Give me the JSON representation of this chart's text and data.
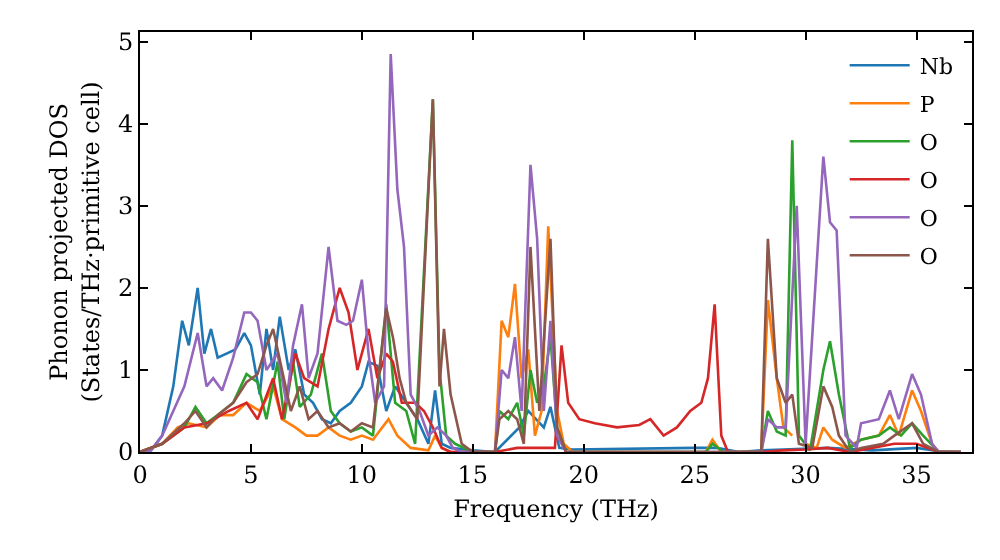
{
  "chart_data": {
    "type": "line",
    "xlabel": "Frequency (THz)",
    "ylabel": "Phonon projected DOS\n(States/THz·primitive cell)",
    "xlim": [
      0,
      37.5
    ],
    "ylim": [
      0,
      5.12
    ],
    "xticks": [
      0,
      5,
      10,
      15,
      20,
      25,
      30,
      35
    ],
    "yticks": [
      0,
      1,
      2,
      3,
      4,
      5
    ],
    "grid": false,
    "legend": "top right",
    "marker": "none",
    "line_style": "solid",
    "series": [
      {
        "name": "Nb",
        "color": "#1f77b4",
        "x": [
          0,
          0.5,
          1,
          1.5,
          1.9,
          2.2,
          2.6,
          2.9,
          3.2,
          3.5,
          3.9,
          4.3,
          4.7,
          5.0,
          5.4,
          5.7,
          6.0,
          6.3,
          6.7,
          7.0,
          7.4,
          7.8,
          8.2,
          8.6,
          9.0,
          9.5,
          10.0,
          10.3,
          10.7,
          11.1,
          11.5,
          12.0,
          12.5,
          13.0,
          13.3,
          13.6,
          14,
          15,
          16,
          17.1,
          17.5,
          18.2,
          18.5,
          18.9,
          19.5,
          25,
          26,
          27,
          28,
          29,
          31,
          33,
          35,
          36,
          37
        ],
        "values": [
          0,
          0.02,
          0.2,
          0.8,
          1.6,
          1.3,
          2.0,
          1.2,
          1.5,
          1.15,
          1.2,
          1.25,
          1.45,
          1.3,
          0.7,
          1.5,
          1.0,
          1.65,
          1.0,
          1.25,
          0.7,
          0.6,
          0.4,
          0.35,
          0.5,
          0.6,
          0.8,
          1.1,
          1.05,
          0.5,
          0.8,
          0.6,
          0.4,
          0.1,
          0.75,
          0.1,
          0.05,
          0.02,
          0,
          0.3,
          0.5,
          0.3,
          0.55,
          0.05,
          0.03,
          0.05,
          0.05,
          0,
          0.02,
          0.03,
          0.05,
          0.02,
          0.05,
          0.01,
          0
        ]
      },
      {
        "name": "P",
        "color": "#ff7f0e",
        "x": [
          0,
          1,
          1.7,
          2.2,
          3,
          3.6,
          4.2,
          4.8,
          5.4,
          6.0,
          6.4,
          7.0,
          7.5,
          8,
          8.5,
          9,
          9.5,
          10,
          10.5,
          11.2,
          11.6,
          12.2,
          13,
          13.3,
          13.6,
          14,
          16,
          16.3,
          16.6,
          16.9,
          17.2,
          17.5,
          17.8,
          18.1,
          18.4,
          18.8,
          19.1,
          19.5,
          25.5,
          25.8,
          26.2,
          28,
          28.3,
          28.7,
          29,
          29.4,
          29.6,
          30,
          30.5,
          30.8,
          31.2,
          31.8,
          32.5,
          33.3,
          33.8,
          34.2,
          34.8,
          35.2,
          35.7,
          36,
          37
        ],
        "values": [
          0,
          0.1,
          0.3,
          0.35,
          0.3,
          0.45,
          0.45,
          0.6,
          0.5,
          0.8,
          0.4,
          0.3,
          0.2,
          0.2,
          0.3,
          0.2,
          0.15,
          0.2,
          0.15,
          0.4,
          0.2,
          0.05,
          0.02,
          0.2,
          0.05,
          0,
          0,
          1.6,
          1.4,
          2.05,
          0.9,
          1.25,
          0.2,
          0.5,
          2.75,
          0.5,
          0.1,
          0,
          0,
          0.15,
          0,
          0,
          1.85,
          0.9,
          0.3,
          0.2,
          null,
          0.1,
          0.05,
          0.3,
          0.15,
          0.05,
          0.15,
          0.2,
          0.45,
          0.2,
          0.75,
          0.5,
          0.1,
          0,
          0
        ]
      },
      {
        "name": "O",
        "color": "#2ca02c",
        "x": [
          0,
          1,
          2,
          2.5,
          3,
          3.5,
          4.2,
          4.8,
          5.3,
          5.7,
          6.2,
          6.5,
          6.9,
          7.2,
          7.7,
          8.2,
          8.6,
          9,
          9.5,
          10,
          10.5,
          11.1,
          11.5,
          12,
          12.4,
          13.2,
          13.5,
          13.8,
          14.2,
          14.6,
          15,
          16,
          16.2,
          16.6,
          17,
          17.3,
          17.6,
          17.9,
          18.2,
          18.5,
          18.8,
          19.2,
          25.5,
          25.8,
          26.3,
          28,
          28.3,
          28.7,
          29.1,
          29.4,
          29.7,
          30.2,
          30.8,
          31.1,
          31.5,
          32,
          32.5,
          33.3,
          33.8,
          34.3,
          34.8,
          35.3,
          36,
          37
        ],
        "values": [
          0,
          0.1,
          0.3,
          0.55,
          0.35,
          0.45,
          0.6,
          0.95,
          0.85,
          0.4,
          1.1,
          0.4,
          1.1,
          0.55,
          0.7,
          1.2,
          0.5,
          0.35,
          0.25,
          0.3,
          0.2,
          1.8,
          0.6,
          0.5,
          0.1,
          4.3,
          1.0,
          0.2,
          0.1,
          0.05,
          0,
          0,
          0.5,
          0.4,
          0.6,
          0.2,
          1.0,
          0.6,
          0.8,
          1.4,
          0.3,
          0,
          0,
          0.1,
          0,
          0,
          0.5,
          0.25,
          0.2,
          3.8,
          0.2,
          0.02,
          1.0,
          1.35,
          0.7,
          0.05,
          0.15,
          0.2,
          0.3,
          0.2,
          0.35,
          0.2,
          0,
          0
        ]
      },
      {
        "name": "O",
        "color": "#d62728",
        "x": [
          0,
          1,
          2,
          3,
          4,
          4.8,
          5.3,
          6,
          6.4,
          7,
          7.4,
          8,
          8.5,
          9,
          9.4,
          9.8,
          10.3,
          10.7,
          11.1,
          11.4,
          11.8,
          12.4,
          12.8,
          13.2,
          13.6,
          14,
          16,
          17,
          18,
          18.7,
          19.0,
          19.3,
          19.8,
          20.5,
          21.5,
          22.5,
          23,
          23.6,
          24.2,
          24.8,
          25.3,
          25.6,
          25.9,
          26.2,
          26.5,
          28,
          29,
          30,
          31,
          32,
          33,
          34,
          35,
          36,
          37
        ],
        "values": [
          0,
          0.1,
          0.3,
          0.35,
          0.5,
          0.6,
          0.4,
          0.9,
          0.4,
          1.2,
          0.9,
          0.8,
          1.5,
          2.0,
          1.7,
          1.0,
          1.5,
          0.9,
          1.2,
          1.1,
          0.6,
          0.6,
          0.5,
          0.3,
          0.05,
          0,
          0,
          0.05,
          0.05,
          0.05,
          1.3,
          0.6,
          0.4,
          0.35,
          0.3,
          0.33,
          0.4,
          0.2,
          0.3,
          0.5,
          0.6,
          0.9,
          1.8,
          0.2,
          0,
          0,
          0.02,
          0.03,
          0.05,
          0,
          0.05,
          0.1,
          0.1,
          0,
          0
        ]
      },
      {
        "name": "O",
        "color": "#9467bd",
        "x": [
          0,
          0.5,
          1,
          1.5,
          2,
          2.6,
          3,
          3.3,
          3.7,
          4.2,
          4.7,
          5.0,
          5.3,
          5.7,
          6.2,
          6.6,
          6.9,
          7.3,
          7.6,
          8,
          8.5,
          8.9,
          9.3,
          9.6,
          10,
          10.3,
          10.6,
          11,
          11.3,
          11.6,
          11.9,
          12.2,
          12.6,
          13.0,
          13.4,
          13.8,
          14.1,
          14.5,
          16,
          16.3,
          16.6,
          16.9,
          17.2,
          17.6,
          17.9,
          18.2,
          18.5,
          18.8,
          19.2,
          28,
          28.3,
          28.7,
          29.1,
          29.6,
          30,
          30.8,
          31.1,
          31.4,
          31.8,
          32.3,
          32.5,
          33.3,
          33.8,
          34.2,
          34.8,
          35.2,
          35.7,
          36,
          37
        ],
        "values": [
          0,
          0.02,
          0.2,
          0.5,
          0.8,
          1.45,
          0.8,
          0.9,
          0.75,
          1.15,
          1.7,
          1.7,
          1.6,
          1.0,
          1.2,
          0.6,
          1.3,
          1.8,
          0.9,
          1.2,
          2.5,
          1.6,
          1.55,
          1.6,
          2.1,
          1.2,
          0.6,
          0.8,
          4.85,
          3.2,
          2.5,
          0.7,
          0.5,
          0.2,
          0.3,
          0.2,
          0.05,
          0,
          0,
          1.0,
          0.9,
          1.4,
          0.5,
          3.5,
          2.6,
          0.5,
          1.6,
          0.2,
          0,
          0,
          0.4,
          0.3,
          0.3,
          3.0,
          0.1,
          3.6,
          2.8,
          2.7,
          0.2,
          0.05,
          0.35,
          0.4,
          0.75,
          0.4,
          0.95,
          0.7,
          0.1,
          0,
          0
        ]
      },
      {
        "name": "O",
        "color": "#8c564b",
        "x": [
          0,
          1,
          2,
          2.5,
          3,
          3.5,
          4.2,
          4.8,
          5.3,
          5.7,
          6.0,
          6.4,
          6.8,
          7.2,
          7.6,
          8,
          8.5,
          9,
          9.5,
          10,
          10.5,
          11.1,
          11.4,
          11.7,
          12.0,
          12.5,
          13.2,
          13.5,
          13.7,
          14,
          14.5,
          15,
          16,
          16.2,
          16.6,
          17,
          17.3,
          17.6,
          18.0,
          18.5,
          18.8,
          19.2,
          28,
          28.3,
          28.7,
          29.1,
          29.4,
          29.7,
          30.3,
          30.8,
          31.2,
          31.5,
          32,
          32.5,
          33.5,
          34,
          34.8,
          35.3,
          36,
          37
        ],
        "values": [
          0,
          0.1,
          0.35,
          0.5,
          0.3,
          0.45,
          0.6,
          0.85,
          0.95,
          1.3,
          1.5,
          1.0,
          0.5,
          0.8,
          0.4,
          0.5,
          0.3,
          0.35,
          0.25,
          0.35,
          0.3,
          1.75,
          1.4,
          0.9,
          0.6,
          0.4,
          4.3,
          0.8,
          1.5,
          0.7,
          0.1,
          0,
          0,
          0.4,
          0.5,
          0.4,
          0.1,
          2.5,
          0.5,
          2.6,
          0.3,
          0,
          0,
          2.6,
          0.9,
          0.6,
          0.7,
          0.1,
          0.05,
          0.8,
          0.55,
          0.2,
          0,
          0.05,
          0.1,
          0.2,
          0.35,
          0.1,
          0,
          0
        ]
      }
    ]
  }
}
